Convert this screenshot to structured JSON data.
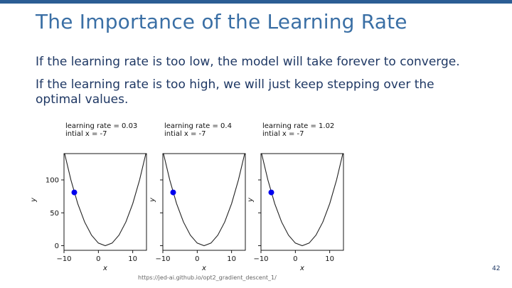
{
  "slide": {
    "title": "The Importance of the Learning Rate",
    "paragraphs": [
      "If the learning rate is too low, the model will take forever to converge.",
      "If the learning rate is too high, we will just keep stepping over the optimal values."
    ],
    "source": "https://jed-ai.github.io/opt2_gradient_descent_1/",
    "page_number": "42"
  },
  "colors": {
    "top_bar": "#2b5d94",
    "title": "#3a6fa5",
    "body_text": "#1f3864",
    "curve": "#222222",
    "point": "#0000ee"
  },
  "chart_data": [
    {
      "type": "line",
      "annotation": [
        "learning rate = 0.03",
        "intial x = -7"
      ],
      "xlabel": "x",
      "ylabel": "y",
      "xlim": [
        -10,
        14
      ],
      "ylim": [
        -7,
        140
      ],
      "xticks": [
        -10,
        0,
        10
      ],
      "yticks": [
        0,
        50,
        100
      ],
      "series": [
        {
          "x": [
            -10,
            -8,
            -6,
            -4,
            -2,
            0,
            2,
            4,
            6,
            8,
            10,
            12,
            14
          ],
          "y": [
            144,
            100,
            64,
            36,
            16,
            4,
            0,
            4,
            16,
            36,
            64,
            100,
            144
          ]
        }
      ],
      "point": {
        "x": -7,
        "y": 81
      }
    },
    {
      "type": "line",
      "annotation": [
        "learning rate = 0.4",
        "intial x = -7"
      ],
      "xlabel": "x",
      "ylabel": "y",
      "xlim": [
        -10,
        14
      ],
      "ylim": [
        -7,
        140
      ],
      "xticks": [
        -10,
        0,
        10
      ],
      "yticks": [
        0,
        50,
        100
      ],
      "series": [
        {
          "x": [
            -10,
            -8,
            -6,
            -4,
            -2,
            0,
            2,
            4,
            6,
            8,
            10,
            12,
            14
          ],
          "y": [
            144,
            100,
            64,
            36,
            16,
            4,
            0,
            4,
            16,
            36,
            64,
            100,
            144
          ]
        }
      ],
      "point": {
        "x": -7,
        "y": 81
      }
    },
    {
      "type": "line",
      "annotation": [
        "learning rate = 1.02",
        "intial x = -7"
      ],
      "xlabel": "x",
      "ylabel": "y",
      "xlim": [
        -10,
        14
      ],
      "ylim": [
        -7,
        140
      ],
      "xticks": [
        -10,
        0,
        10
      ],
      "yticks": [
        0,
        50,
        100
      ],
      "series": [
        {
          "x": [
            -10,
            -8,
            -6,
            -4,
            -2,
            0,
            2,
            4,
            6,
            8,
            10,
            12,
            14
          ],
          "y": [
            144,
            100,
            64,
            36,
            16,
            4,
            0,
            4,
            16,
            36,
            64,
            100,
            144
          ]
        }
      ],
      "point": {
        "x": -7,
        "y": 81
      }
    }
  ]
}
